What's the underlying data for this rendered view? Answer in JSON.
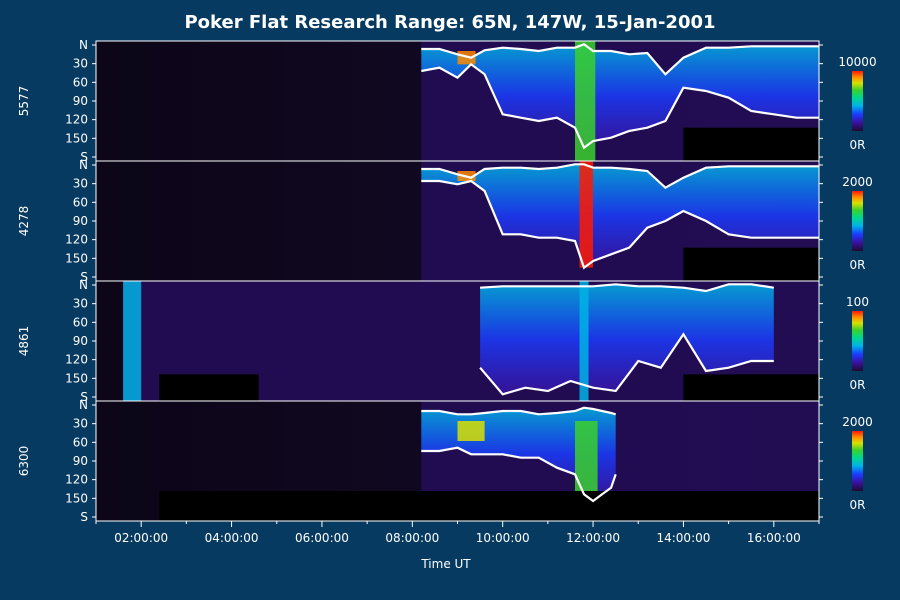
{
  "title": "Poker Flat Research Range: 65N, 147W, 15-Jan-2001",
  "colors": {
    "background": "#073a60",
    "text": "#ffffff",
    "no_data": "#000000",
    "outline": "#ffffff"
  },
  "chart_data": {
    "type": "heatmap",
    "title": "Poker Flat Research Range: 65N, 147W, 15-Jan-2001",
    "xlabel": "Time UT",
    "x_ticks": [
      "02:00:00",
      "04:00:00",
      "06:00:00",
      "08:00:00",
      "10:00:00",
      "12:00:00",
      "14:00:00",
      "16:00:00"
    ],
    "x_range_hours": [
      1.0,
      17.0
    ],
    "y_range_deg": [
      0,
      180
    ],
    "y_ticks": [
      "N",
      "30",
      "60",
      "90",
      "120",
      "150",
      "S"
    ],
    "colormap": [
      "#1a0b2e",
      "#3a12a0",
      "#1a3cff",
      "#00b3e6",
      "#00d98a",
      "#3ad12a",
      "#d9e000",
      "#ff8a00",
      "#ff1a00"
    ],
    "panels": [
      {
        "label": "5577",
        "scale_max": "10000",
        "scale_min": "0R",
        "data_start_h": 8.2,
        "masks": [
          [
            14.0,
            17.0,
            130,
            180
          ]
        ],
        "envelope": {
          "t": [
            8.2,
            8.6,
            9.0,
            9.3,
            9.6,
            10.0,
            10.4,
            10.8,
            11.2,
            11.6,
            11.8,
            12.0,
            12.4,
            12.8,
            13.2,
            13.6,
            14.0,
            14.5,
            15.0,
            15.5,
            16.0,
            16.5,
            17.0
          ],
          "top": [
            12,
            12,
            20,
            25,
            14,
            10,
            12,
            15,
            10,
            10,
            5,
            15,
            15,
            20,
            18,
            50,
            25,
            10,
            10,
            8,
            8,
            8,
            8
          ],
          "bottom": [
            45,
            40,
            55,
            35,
            50,
            110,
            115,
            120,
            115,
            130,
            160,
            150,
            145,
            135,
            130,
            120,
            70,
            75,
            85,
            105,
            110,
            115,
            115
          ]
        },
        "bands": [
          {
            "t0": 9.0,
            "t1": 9.4,
            "y0": 15,
            "y1": 35,
            "color": "#ff8a00"
          },
          {
            "t0": 11.6,
            "t1": 12.05,
            "y0": 0,
            "y1": 180,
            "color": "#3ad12a"
          }
        ]
      },
      {
        "label": "4278",
        "scale_max": "2000",
        "scale_min": "0R",
        "data_start_h": 8.2,
        "masks": [
          [
            14.0,
            17.0,
            130,
            180
          ]
        ],
        "envelope": {
          "t": [
            8.2,
            8.6,
            9.0,
            9.3,
            9.6,
            10.0,
            10.4,
            10.8,
            11.2,
            11.6,
            11.8,
            12.0,
            12.4,
            12.8,
            13.2,
            13.6,
            14.0,
            14.5,
            15.0,
            15.5,
            16.0,
            16.5,
            17.0
          ],
          "top": [
            12,
            12,
            20,
            25,
            12,
            10,
            10,
            12,
            10,
            5,
            5,
            10,
            10,
            12,
            15,
            40,
            25,
            10,
            8,
            8,
            8,
            8,
            8
          ],
          "bottom": [
            30,
            30,
            35,
            30,
            45,
            110,
            110,
            115,
            115,
            120,
            160,
            150,
            140,
            130,
            100,
            90,
            75,
            90,
            110,
            115,
            115,
            115,
            115
          ]
        },
        "bands": [
          {
            "t0": 9.0,
            "t1": 9.4,
            "y0": 15,
            "y1": 30,
            "color": "#ff8a00"
          },
          {
            "t0": 11.7,
            "t1": 12.0,
            "y0": 0,
            "y1": 160,
            "color": "#ff1a00"
          }
        ]
      },
      {
        "label": "4861",
        "scale_max": "100",
        "scale_min": "0R",
        "data_start_h": 1.6,
        "masks": [
          [
            2.4,
            4.6,
            140,
            180
          ],
          [
            14.0,
            17.0,
            140,
            180
          ]
        ],
        "envelope": {
          "t": [
            9.5,
            10.0,
            10.5,
            11.0,
            11.5,
            12.0,
            12.5,
            13.0,
            13.5,
            14.0,
            14.5,
            15.0,
            15.5,
            16.0
          ],
          "top": [
            10,
            8,
            8,
            8,
            8,
            8,
            5,
            8,
            8,
            10,
            15,
            5,
            5,
            10
          ],
          "bottom": [
            130,
            170,
            160,
            165,
            150,
            160,
            165,
            120,
            130,
            80,
            135,
            130,
            120,
            120
          ]
        },
        "bands": [
          {
            "t0": 1.6,
            "t1": 2.0,
            "y0": 0,
            "y1": 180,
            "color": "#00b3e6"
          },
          {
            "t0": 11.7,
            "t1": 11.9,
            "y0": 0,
            "y1": 180,
            "color": "#00b3e6"
          }
        ]
      },
      {
        "label": "6300",
        "scale_max": "2000",
        "scale_min": "0R",
        "data_start_h": 8.2,
        "masks": [
          [
            2.4,
            14.0,
            135,
            180
          ],
          [
            14.0,
            17.0,
            135,
            180
          ]
        ],
        "envelope": {
          "t": [
            8.2,
            8.6,
            9.0,
            9.3,
            9.6,
            10.0,
            10.4,
            10.8,
            11.2,
            11.6,
            11.8,
            12.0,
            12.2,
            12.4,
            12.5
          ],
          "top": [
            15,
            15,
            20,
            20,
            18,
            15,
            15,
            20,
            18,
            15,
            10,
            12,
            15,
            18,
            20
          ],
          "bottom": [
            75,
            75,
            70,
            80,
            80,
            80,
            85,
            85,
            100,
            110,
            140,
            150,
            140,
            130,
            110
          ]
        },
        "bands": [
          {
            "t0": 9.0,
            "t1": 9.6,
            "y0": 30,
            "y1": 60,
            "color": "#d9e000"
          },
          {
            "t0": 11.6,
            "t1": 12.1,
            "y0": 30,
            "y1": 140,
            "color": "#3ad12a"
          }
        ]
      }
    ]
  }
}
